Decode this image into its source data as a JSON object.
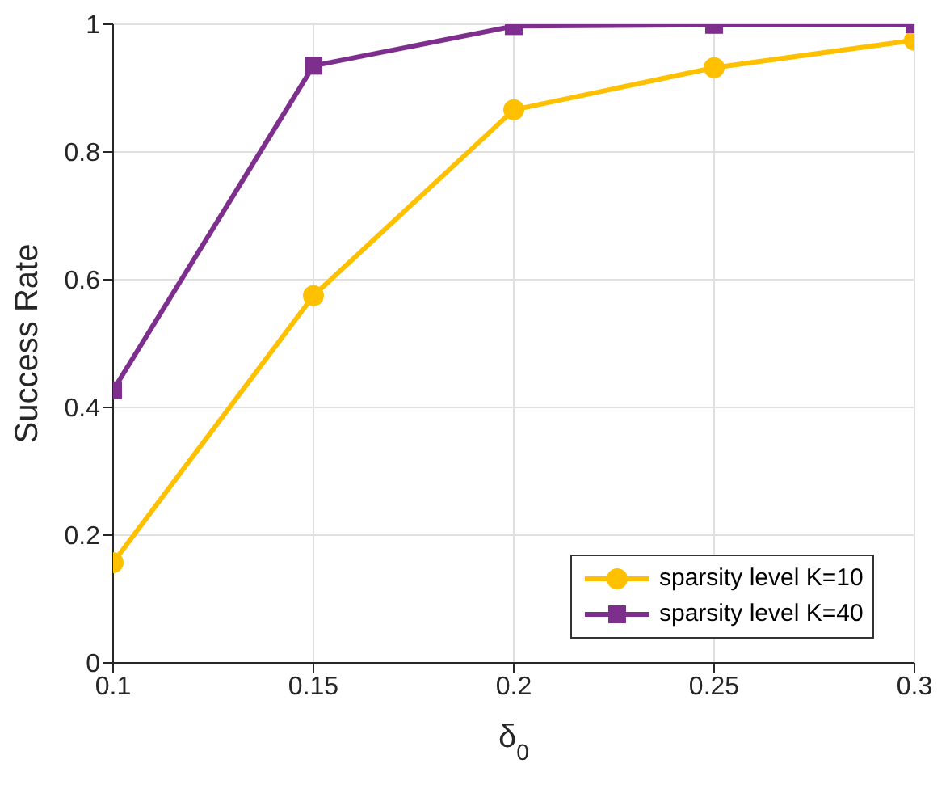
{
  "chart_data": {
    "type": "line",
    "xlabel": "δ$_{0}$",
    "ylabel": "Success Rate",
    "x": [
      0.1,
      0.15,
      0.2,
      0.25,
      0.3
    ],
    "series": [
      {
        "name": "sparsity level K=10",
        "color": "#ffc000",
        "marker": "circle",
        "values": [
          0.157,
          0.575,
          0.866,
          0.932,
          0.975
        ]
      },
      {
        "name": "sparsity level K=40",
        "color": "#7e2f8e",
        "marker": "square",
        "values": [
          0.427,
          0.935,
          0.997,
          0.999,
          1.0
        ]
      }
    ],
    "xlim": [
      0.1,
      0.3
    ],
    "xticks": [
      0.1,
      0.15,
      0.2,
      0.25,
      0.3
    ],
    "ylim": [
      0,
      1
    ],
    "yticks": [
      0,
      0.2,
      0.4,
      0.6,
      0.8,
      1
    ],
    "grid": true,
    "legend": "bottom right",
    "line_style": "solid"
  }
}
